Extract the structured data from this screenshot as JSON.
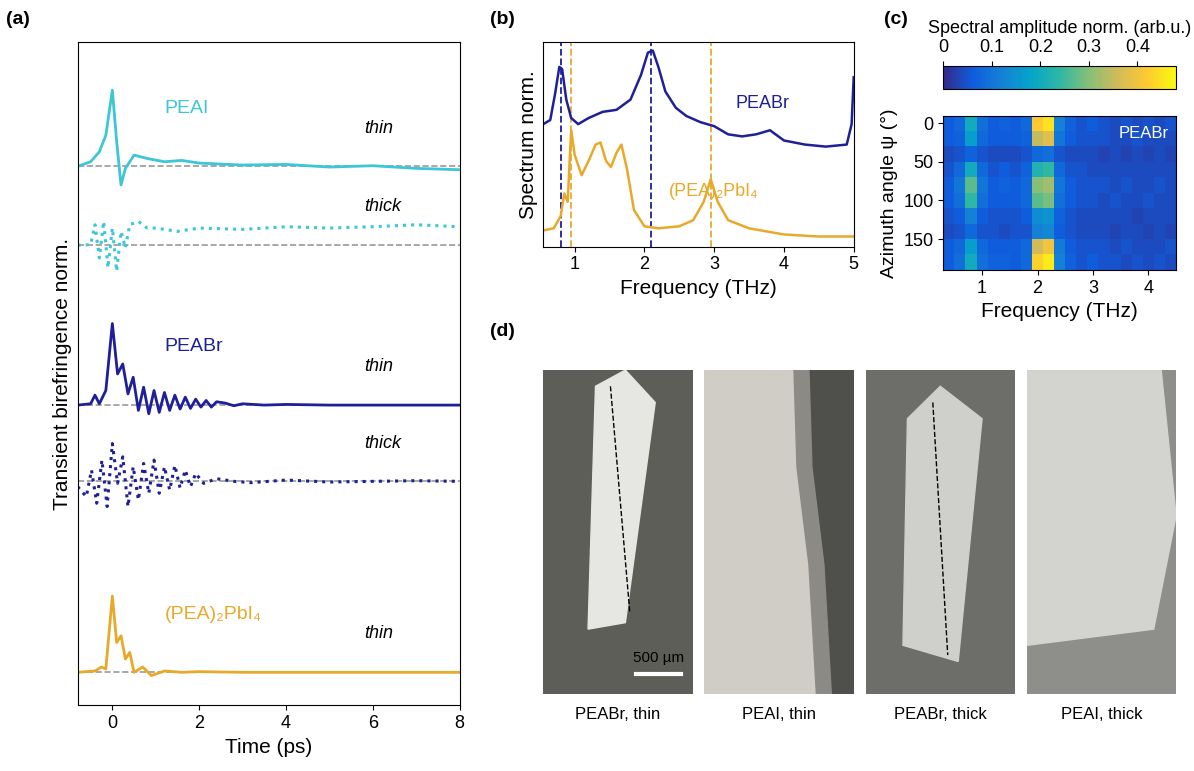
{
  "panel_labels": [
    "(a)",
    "(b)",
    "(c)",
    "(d)"
  ],
  "chart_data": [
    {
      "type": "line",
      "xlabel": "Time (ps)",
      "ylabel": "Transient birefringence norm.",
      "xlim": [
        -0.8,
        8
      ],
      "xticks": [
        0,
        2,
        4,
        6,
        8
      ],
      "ylim": [
        0,
        10
      ],
      "tick_labels": "x",
      "series": [
        {
          "name": "PEAI",
          "sample": "thin",
          "color": "#3cc6d6",
          "line_style": "solid",
          "baseline": 8.13,
          "x": [
            -0.8,
            -0.5,
            -0.3,
            -0.15,
            0,
            0.1,
            0.2,
            0.3,
            0.5,
            0.8,
            1.2,
            1.6,
            2,
            3,
            4,
            5,
            6,
            7,
            8
          ],
          "values": [
            8.13,
            8.2,
            8.35,
            8.6,
            9.28,
            8.5,
            7.85,
            8.1,
            8.3,
            8.25,
            8.2,
            8.22,
            8.18,
            8.15,
            8.16,
            8.12,
            8.14,
            8.1,
            8.08
          ]
        },
        {
          "name": "PEAI",
          "sample": "thick",
          "color": "#3cc6d6",
          "line_style": "dotted",
          "baseline": 6.94,
          "x": [
            -0.8,
            -0.5,
            -0.4,
            -0.3,
            -0.2,
            -0.1,
            0,
            0.1,
            0.2,
            0.3,
            0.4,
            0.6,
            0.8,
            1,
            1.5,
            2,
            3,
            4,
            5,
            6,
            7,
            8
          ],
          "values": [
            6.94,
            6.95,
            7.25,
            6.75,
            7.3,
            6.6,
            7.2,
            6.55,
            7.15,
            6.9,
            7.25,
            7.3,
            7.2,
            7.2,
            7.15,
            7.2,
            7.18,
            7.22,
            7.2,
            7.22,
            7.25,
            7.22
          ]
        },
        {
          "name": "PEABr",
          "sample": "thin",
          "color": "#1f1f99",
          "line_style": "solid",
          "baseline": 4.53,
          "x": [
            -0.8,
            -0.5,
            -0.4,
            -0.3,
            -0.15,
            0,
            0.12,
            0.24,
            0.36,
            0.48,
            0.6,
            0.72,
            0.84,
            0.96,
            1.08,
            1.2,
            1.32,
            1.44,
            1.56,
            1.68,
            1.8,
            1.92,
            2.04,
            2.16,
            2.28,
            2.4,
            2.6,
            2.8,
            3.0,
            3.5,
            4,
            5,
            6,
            7,
            8
          ],
          "values": [
            4.53,
            4.55,
            4.68,
            4.55,
            4.75,
            5.76,
            5.0,
            5.15,
            4.7,
            4.95,
            4.45,
            4.8,
            4.4,
            4.75,
            4.42,
            4.72,
            4.45,
            4.68,
            4.47,
            4.65,
            4.48,
            4.62,
            4.5,
            4.6,
            4.5,
            4.58,
            4.56,
            4.52,
            4.55,
            4.53,
            4.54,
            4.53,
            4.53,
            4.53,
            4.53
          ]
        },
        {
          "name": "PEABr",
          "sample": "thick",
          "color": "#1f1f99",
          "line_style": "dotted",
          "baseline": 3.38,
          "x": [
            -0.8,
            -0.6,
            -0.48,
            -0.36,
            -0.24,
            -0.12,
            0,
            0.12,
            0.24,
            0.36,
            0.48,
            0.6,
            0.72,
            0.84,
            0.96,
            1.08,
            1.2,
            1.32,
            1.44,
            1.56,
            1.68,
            1.8,
            1.92,
            2.1,
            2.4,
            2.8,
            3.2,
            4,
            5,
            6,
            7,
            8
          ],
          "values": [
            3.3,
            3.15,
            3.55,
            3.05,
            3.7,
            3.0,
            3.95,
            3.35,
            3.75,
            3.0,
            3.6,
            3.1,
            3.65,
            3.2,
            3.7,
            3.2,
            3.6,
            3.25,
            3.62,
            3.28,
            3.55,
            3.3,
            3.5,
            3.35,
            3.42,
            3.38,
            3.36,
            3.4,
            3.37,
            3.38,
            3.39,
            3.38
          ]
        },
        {
          "name": "(PEA)₂PbI₄",
          "sample": "thin",
          "color": "#e8a92a",
          "line_style": "solid",
          "baseline": 0.5,
          "x": [
            -0.8,
            -0.4,
            -0.25,
            -0.15,
            0,
            0.1,
            0.2,
            0.3,
            0.4,
            0.5,
            0.7,
            0.9,
            1.2,
            1.6,
            2,
            3,
            4,
            5,
            6,
            7,
            8
          ],
          "values": [
            0.5,
            0.52,
            0.58,
            0.55,
            1.65,
            0.95,
            1.05,
            0.7,
            0.8,
            0.5,
            0.58,
            0.45,
            0.52,
            0.5,
            0.51,
            0.5,
            0.5,
            0.5,
            0.5,
            0.5,
            0.5
          ]
        }
      ]
    },
    {
      "type": "line",
      "xlabel": "Frequency (THz)",
      "ylabel": "Spectrum norm.",
      "xlim": [
        0.55,
        5.0
      ],
      "xticks": [
        1,
        2,
        3,
        4,
        5
      ],
      "ylim": [
        0,
        10
      ],
      "tick_labels": "x",
      "series": [
        {
          "name": "PEABr",
          "color": "#1f1f99",
          "line_style": "solid",
          "peaks": [
            0.8,
            2.1
          ],
          "x": [
            0.55,
            0.65,
            0.72,
            0.78,
            0.82,
            0.88,
            0.95,
            1.05,
            1.2,
            1.4,
            1.6,
            1.8,
            1.95,
            2.05,
            2.12,
            2.2,
            2.3,
            2.45,
            2.6,
            2.8,
            3.0,
            3.2,
            3.4,
            3.6,
            3.8,
            4.0,
            4.3,
            4.6,
            4.9,
            4.97,
            5.0
          ],
          "values": [
            6.0,
            6.2,
            7.5,
            8.8,
            8.7,
            7.2,
            6.3,
            6.0,
            6.3,
            6.6,
            6.7,
            7.2,
            8.4,
            9.5,
            9.6,
            8.8,
            7.6,
            6.8,
            6.4,
            6.1,
            5.9,
            5.5,
            5.4,
            5.5,
            5.7,
            5.2,
            5.0,
            4.9,
            5.0,
            6.0,
            8.3
          ]
        },
        {
          "name": "(PEA)₂PbI₄",
          "color": "#e8a92a",
          "line_style": "solid",
          "peaks": [
            0.95,
            2.95
          ],
          "x": [
            0.55,
            0.7,
            0.8,
            0.85,
            0.9,
            0.95,
            1.0,
            1.1,
            1.2,
            1.3,
            1.37,
            1.45,
            1.52,
            1.6,
            1.67,
            1.75,
            1.85,
            2.0,
            2.2,
            2.5,
            2.7,
            2.85,
            2.95,
            3.05,
            3.2,
            3.5,
            4.0,
            4.5,
            5.0
          ],
          "values": [
            0.8,
            0.9,
            1.5,
            2.6,
            2.2,
            5.7,
            4.5,
            3.5,
            4.2,
            5.0,
            5.1,
            4.2,
            3.9,
            4.6,
            5.0,
            3.8,
            1.8,
            1.0,
            0.9,
            1.0,
            1.3,
            2.2,
            3.3,
            2.2,
            1.3,
            0.9,
            0.6,
            0.5,
            0.5
          ]
        }
      ]
    },
    {
      "type": "heatmap",
      "title": "PEABr",
      "xlabel": "Frequency (THz)",
      "ylabel": "Azimuth angle ψ (°)",
      "x": [
        0.4,
        0.6,
        0.8,
        1.0,
        1.2,
        1.4,
        1.6,
        1.8,
        2.0,
        2.2,
        2.4,
        2.6,
        2.8,
        3.0,
        3.2,
        3.4,
        3.6,
        3.8,
        4.0,
        4.2,
        4.4
      ],
      "y": [
        0,
        20,
        40,
        60,
        80,
        100,
        120,
        140,
        160,
        180
      ],
      "cells": [
        [
          0.06,
          0.08,
          0.2,
          0.09,
          0.06,
          0.07,
          0.06,
          0.08,
          0.42,
          0.45,
          0.12,
          0.07,
          0.05,
          0.06,
          0.05,
          0.04,
          0.05,
          0.04,
          0.05,
          0.04,
          0.05
        ],
        [
          0.06,
          0.07,
          0.17,
          0.08,
          0.06,
          0.06,
          0.06,
          0.07,
          0.35,
          0.38,
          0.1,
          0.06,
          0.05,
          0.05,
          0.05,
          0.04,
          0.04,
          0.05,
          0.04,
          0.04,
          0.04
        ],
        [
          0.04,
          0.05,
          0.07,
          0.05,
          0.04,
          0.04,
          0.04,
          0.05,
          0.08,
          0.09,
          0.05,
          0.04,
          0.04,
          0.04,
          0.03,
          0.04,
          0.03,
          0.04,
          0.03,
          0.04,
          0.03
        ],
        [
          0.05,
          0.08,
          0.2,
          0.08,
          0.05,
          0.06,
          0.05,
          0.07,
          0.22,
          0.24,
          0.08,
          0.05,
          0.05,
          0.04,
          0.04,
          0.04,
          0.04,
          0.04,
          0.04,
          0.04,
          0.04
        ],
        [
          0.06,
          0.1,
          0.27,
          0.1,
          0.06,
          0.07,
          0.06,
          0.08,
          0.3,
          0.32,
          0.1,
          0.06,
          0.05,
          0.05,
          0.05,
          0.04,
          0.05,
          0.04,
          0.04,
          0.05,
          0.04
        ],
        [
          0.06,
          0.09,
          0.24,
          0.09,
          0.06,
          0.06,
          0.06,
          0.08,
          0.27,
          0.29,
          0.09,
          0.06,
          0.05,
          0.05,
          0.04,
          0.05,
          0.04,
          0.04,
          0.05,
          0.04,
          0.04
        ],
        [
          0.05,
          0.06,
          0.12,
          0.06,
          0.05,
          0.05,
          0.05,
          0.06,
          0.14,
          0.15,
          0.07,
          0.05,
          0.04,
          0.04,
          0.04,
          0.04,
          0.04,
          0.03,
          0.04,
          0.04,
          0.04
        ],
        [
          0.04,
          0.05,
          0.08,
          0.05,
          0.05,
          0.04,
          0.05,
          0.05,
          0.12,
          0.13,
          0.06,
          0.05,
          0.04,
          0.04,
          0.04,
          0.03,
          0.04,
          0.04,
          0.03,
          0.04,
          0.03
        ],
        [
          0.06,
          0.08,
          0.17,
          0.08,
          0.06,
          0.06,
          0.06,
          0.08,
          0.36,
          0.4,
          0.11,
          0.06,
          0.05,
          0.05,
          0.05,
          0.04,
          0.05,
          0.04,
          0.04,
          0.04,
          0.05
        ],
        [
          0.06,
          0.09,
          0.2,
          0.09,
          0.07,
          0.07,
          0.06,
          0.08,
          0.43,
          0.46,
          0.12,
          0.07,
          0.05,
          0.06,
          0.05,
          0.05,
          0.04,
          0.05,
          0.04,
          0.05,
          0.04
        ]
      ],
      "xlim": [
        0.3,
        4.5
      ],
      "xticks": [
        1,
        2,
        3,
        4
      ],
      "ylim": [
        190,
        -10
      ],
      "yticks": [
        0,
        50,
        100,
        150
      ],
      "colorbar": {
        "label": "Spectral amplitude norm. (arb.u.)",
        "range": [
          0,
          0.48
        ],
        "ticks": [
          0,
          0.1,
          0.2,
          0.3,
          0.4
        ]
      }
    }
  ],
  "images": {
    "captions": [
      "PEABr, thin",
      "PEAI, thin",
      "PEABr, thick",
      "PEAI, thick"
    ],
    "scale_bar": "500 µm"
  }
}
